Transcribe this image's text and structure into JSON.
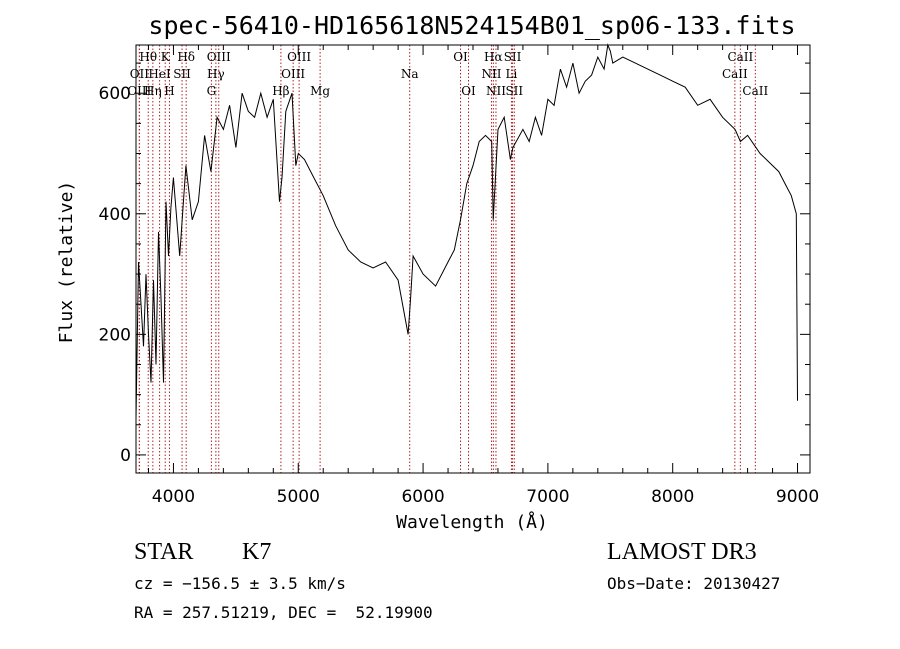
{
  "chart_data": {
    "type": "line",
    "title": "spec-56410-HD165618N524154B01_sp06-133.fits",
    "xlabel": "Wavelength (Å)",
    "ylabel": "Flux (relative)",
    "xlim": [
      3700,
      9100
    ],
    "ylim": [
      -30,
      680
    ],
    "x_ticks": [
      4000,
      5000,
      6000,
      7000,
      8000,
      9000
    ],
    "x_tick_labels": [
      "4000",
      "5000",
      "6000",
      "7000",
      "8000",
      "9000"
    ],
    "y_ticks": [
      0,
      200,
      400,
      600
    ],
    "y_tick_labels": [
      "0",
      "200",
      "400",
      "600"
    ],
    "series": [
      {
        "name": "flux",
        "x": [
          3700,
          3720,
          3740,
          3760,
          3780,
          3800,
          3820,
          3840,
          3860,
          3880,
          3900,
          3920,
          3940,
          3960,
          3980,
          4000,
          4050,
          4100,
          4150,
          4200,
          4250,
          4300,
          4350,
          4400,
          4450,
          4500,
          4550,
          4600,
          4650,
          4700,
          4750,
          4800,
          4850,
          4870,
          4900,
          4950,
          4980,
          5000,
          5050,
          5100,
          5200,
          5300,
          5400,
          5500,
          5600,
          5700,
          5800,
          5880,
          5900,
          5920,
          6000,
          6100,
          6200,
          6250,
          6300,
          6350,
          6400,
          6450,
          6500,
          6550,
          6562,
          6600,
          6650,
          6700,
          6720,
          6800,
          6850,
          6900,
          6950,
          7000,
          7050,
          7100,
          7150,
          7200,
          7250,
          7300,
          7350,
          7400,
          7450,
          7480,
          7500,
          7520,
          7600,
          7700,
          7800,
          7900,
          8000,
          8100,
          8200,
          8300,
          8400,
          8500,
          8542,
          8600,
          8700,
          8800,
          8850,
          8900,
          8950,
          8990,
          9000
        ],
        "y": [
          60,
          320,
          250,
          180,
          300,
          200,
          120,
          290,
          150,
          370,
          260,
          120,
          420,
          330,
          410,
          460,
          330,
          480,
          390,
          420,
          530,
          470,
          560,
          540,
          580,
          510,
          600,
          570,
          560,
          600,
          560,
          590,
          420,
          460,
          570,
          600,
          480,
          500,
          490,
          470,
          430,
          380,
          340,
          320,
          310,
          320,
          290,
          200,
          260,
          330,
          300,
          280,
          320,
          340,
          390,
          450,
          480,
          520,
          530,
          520,
          390,
          540,
          560,
          490,
          510,
          540,
          520,
          560,
          530,
          590,
          580,
          640,
          610,
          650,
          600,
          620,
          630,
          660,
          640,
          680,
          670,
          650,
          660,
          650,
          640,
          630,
          620,
          610,
          580,
          590,
          560,
          540,
          520,
          530,
          500,
          480,
          470,
          450,
          430,
          400,
          90
        ]
      }
    ],
    "spectral_lines": [
      {
        "label": "Hθ",
        "x": 3798,
        "row": 1
      },
      {
        "label": "K",
        "x": 3934,
        "row": 1
      },
      {
        "label": "Hδ",
        "x": 4102,
        "row": 1
      },
      {
        "label": "OIII",
        "x": 4363,
        "row": 1
      },
      {
        "label": "OIII",
        "x": 5007,
        "row": 1
      },
      {
        "label": "OI",
        "x": 6300,
        "row": 1
      },
      {
        "label": "Hα",
        "x": 6563,
        "row": 1
      },
      {
        "label": "SII",
        "x": 6717,
        "row": 1
      },
      {
        "label": "CaII",
        "x": 8542,
        "row": 1
      },
      {
        "label": "OII",
        "x": 3727,
        "row": 2
      },
      {
        "label": "HeI",
        "x": 3889,
        "row": 2
      },
      {
        "label": "SII",
        "x": 4069,
        "row": 2
      },
      {
        "label": "Hγ",
        "x": 4340,
        "row": 2
      },
      {
        "label": "OIII",
        "x": 4959,
        "row": 2
      },
      {
        "label": "Na",
        "x": 5893,
        "row": 2
      },
      {
        "label": "NII",
        "x": 6548,
        "row": 2
      },
      {
        "label": "Li",
        "x": 6708,
        "row": 2
      },
      {
        "label": "CaII",
        "x": 8498,
        "row": 2
      },
      {
        "label": "OIII",
        "x": 3727,
        "row": 3
      },
      {
        "label": "Hη",
        "x": 3835,
        "row": 3
      },
      {
        "label": "H",
        "x": 3968,
        "row": 3
      },
      {
        "label": "G",
        "x": 4304,
        "row": 3
      },
      {
        "label": "Hβ",
        "x": 4861,
        "row": 3
      },
      {
        "label": "Mg",
        "x": 5175,
        "row": 3
      },
      {
        "label": "OI",
        "x": 6364,
        "row": 3
      },
      {
        "label": "NII",
        "x": 6584,
        "row": 3
      },
      {
        "label": "SII",
        "x": 6731,
        "row": 3
      },
      {
        "label": "CaII",
        "x": 8662,
        "row": 3
      }
    ]
  },
  "info": {
    "object_class": "STAR",
    "subclass": "K7",
    "survey": "LAMOST DR3",
    "cz": "cz = −156.5 ± 3.5 km/s",
    "obs_date": "Obs−Date: 20130427",
    "coords": "RA = 257.51219, DEC =  52.19900"
  },
  "colors": {
    "line_marker": "#b22222",
    "spectrum": "#000000"
  }
}
